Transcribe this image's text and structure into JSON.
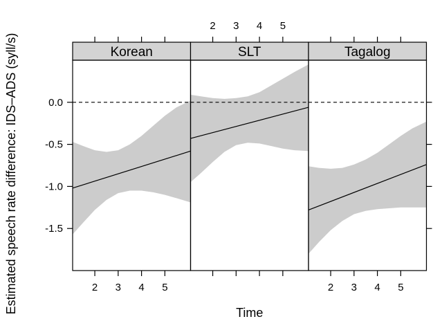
{
  "chart_data": {
    "type": "line",
    "layout": "lattice",
    "xlabel": "Time",
    "ylabel": "Estimated speech rate difference: IDS–ADS (syll/s)",
    "xlim": [
      1.05,
      6.1
    ],
    "ylim": [
      -2.0,
      0.5
    ],
    "x_ticks": [
      2,
      3,
      4,
      5
    ],
    "y_ticks": [
      0.0,
      -0.5,
      -1.0,
      -1.5
    ],
    "y_tick_labels": [
      "0.0",
      "-0.5",
      "-1.0",
      "-1.5"
    ],
    "reference_line": {
      "y": 0.0,
      "style": "dashed"
    },
    "band_color": "#cccccc",
    "line_color": "#000000",
    "panels": [
      {
        "name": "Korean",
        "fit": {
          "x": [
            1.05,
            6.1
          ],
          "y": [
            -1.02,
            -0.58
          ]
        },
        "band": {
          "x": [
            1.05,
            1.5,
            2.0,
            2.5,
            3.0,
            3.5,
            4.0,
            4.5,
            5.0,
            5.5,
            6.1
          ],
          "upper": [
            -0.47,
            -0.52,
            -0.57,
            -0.59,
            -0.57,
            -0.5,
            -0.4,
            -0.28,
            -0.16,
            -0.06,
            0.02
          ],
          "lower": [
            -1.57,
            -1.43,
            -1.28,
            -1.16,
            -1.08,
            -1.05,
            -1.05,
            -1.07,
            -1.1,
            -1.14,
            -1.19
          ]
        }
      },
      {
        "name": "SLT",
        "fit": {
          "x": [
            1.05,
            6.1
          ],
          "y": [
            -0.43,
            -0.06
          ]
        },
        "band": {
          "x": [
            1.05,
            1.5,
            2.0,
            2.5,
            3.0,
            3.5,
            4.0,
            4.5,
            5.0,
            5.5,
            6.1
          ],
          "upper": [
            0.09,
            0.07,
            0.05,
            0.04,
            0.05,
            0.07,
            0.12,
            0.2,
            0.28,
            0.36,
            0.45
          ],
          "lower": [
            -0.95,
            -0.84,
            -0.71,
            -0.59,
            -0.51,
            -0.48,
            -0.49,
            -0.52,
            -0.55,
            -0.57,
            -0.58
          ]
        }
      },
      {
        "name": "Tagalog",
        "fit": {
          "x": [
            1.05,
            6.1
          ],
          "y": [
            -1.28,
            -0.74
          ]
        },
        "band": {
          "x": [
            1.05,
            1.5,
            2.0,
            2.5,
            3.0,
            3.5,
            4.0,
            4.5,
            5.0,
            5.5,
            6.1
          ],
          "upper": [
            -0.76,
            -0.78,
            -0.79,
            -0.78,
            -0.74,
            -0.68,
            -0.6,
            -0.5,
            -0.4,
            -0.31,
            -0.23
          ],
          "lower": [
            -1.8,
            -1.66,
            -1.52,
            -1.41,
            -1.33,
            -1.29,
            -1.27,
            -1.26,
            -1.25,
            -1.25,
            -1.25
          ]
        }
      }
    ]
  }
}
